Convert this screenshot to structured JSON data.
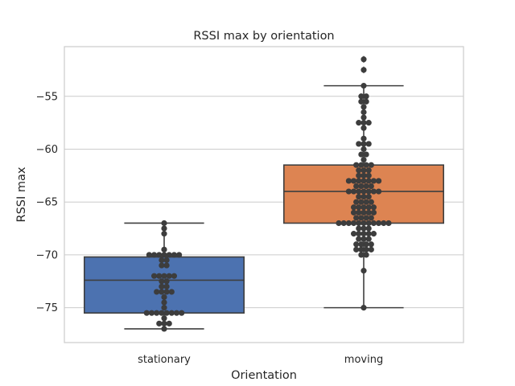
{
  "chart_data": {
    "type": "box",
    "title": "RSSI max by orientation",
    "xlabel": "Orientation",
    "ylabel": "RSSI max",
    "ylim": [
      -78.3,
      -50.3
    ],
    "yticks": [
      -55,
      -60,
      -65,
      -70,
      -75
    ],
    "ytick_labels": [
      "−55",
      "−60",
      "−65",
      "−70",
      "−75"
    ],
    "categories": [
      "stationary",
      "moving"
    ],
    "colors": {
      "stationary": "#4c72b0",
      "moving": "#dd8452"
    },
    "boxes": [
      {
        "category": "stationary",
        "whisker_low": -77,
        "q1": -75.5,
        "median": -72.4,
        "q3": -70.2,
        "whisker_high": -67,
        "outliers": []
      },
      {
        "category": "moving",
        "whisker_low": -75,
        "q1": -67,
        "median": -64,
        "q3": -61.5,
        "whisker_high": -54,
        "outliers": [
          -51.5,
          -52.5
        ]
      }
    ],
    "swarm": [
      {
        "category": "stationary",
        "values": [
          -67,
          -67.5,
          -68,
          -69.5,
          -70,
          -70,
          -70,
          -70,
          -70,
          -70,
          -70,
          -70.5,
          -70.5,
          -71,
          -71,
          -72,
          -72,
          -72,
          -72,
          -72,
          -72.5,
          -72.5,
          -73,
          -73,
          -73.5,
          -73.5,
          -73.5,
          -73.5,
          -74,
          -74.5,
          -75,
          -75.5,
          -75.5,
          -75.5,
          -75.5,
          -75.5,
          -75.5,
          -75.5,
          -75.5,
          -76,
          -76.5,
          -76.5,
          -76.5,
          -77
        ]
      },
      {
        "category": "moving",
        "values": [
          -51.5,
          -52.5,
          -54,
          -55,
          -55,
          -55.5,
          -55.5,
          -56,
          -56.5,
          -57,
          -57.5,
          -57.5,
          -57.5,
          -58,
          -59,
          -59.5,
          -59.5,
          -59.5,
          -60,
          -60.5,
          -60.5,
          -61,
          -61.5,
          -61.5,
          -61.5,
          -61.5,
          -62,
          -62,
          -62,
          -62.5,
          -62.5,
          -62.5,
          -63,
          -63,
          -63,
          -63,
          -63,
          -63,
          -63,
          -63.5,
          -63.5,
          -63.5,
          -63.5,
          -64,
          -64,
          -64,
          -64,
          -64,
          -64,
          -64,
          -64.5,
          -64.5,
          -64.5,
          -65,
          -65,
          -65,
          -65,
          -65.5,
          -65.5,
          -65.5,
          -65.5,
          -65.5,
          -66,
          -66,
          -66,
          -66,
          -66,
          -66.5,
          -66.5,
          -66.5,
          -66.5,
          -67,
          -67,
          -67,
          -67,
          -67,
          -67,
          -67,
          -67,
          -67,
          -67,
          -67,
          -67.5,
          -67.5,
          -67.5,
          -68,
          -68,
          -68,
          -68,
          -68,
          -68.5,
          -68.5,
          -68.5,
          -69,
          -69,
          -69,
          -69,
          -69.5,
          -69.5,
          -69.5,
          -69.5,
          -70,
          -70,
          -71.5,
          -75
        ]
      }
    ]
  }
}
